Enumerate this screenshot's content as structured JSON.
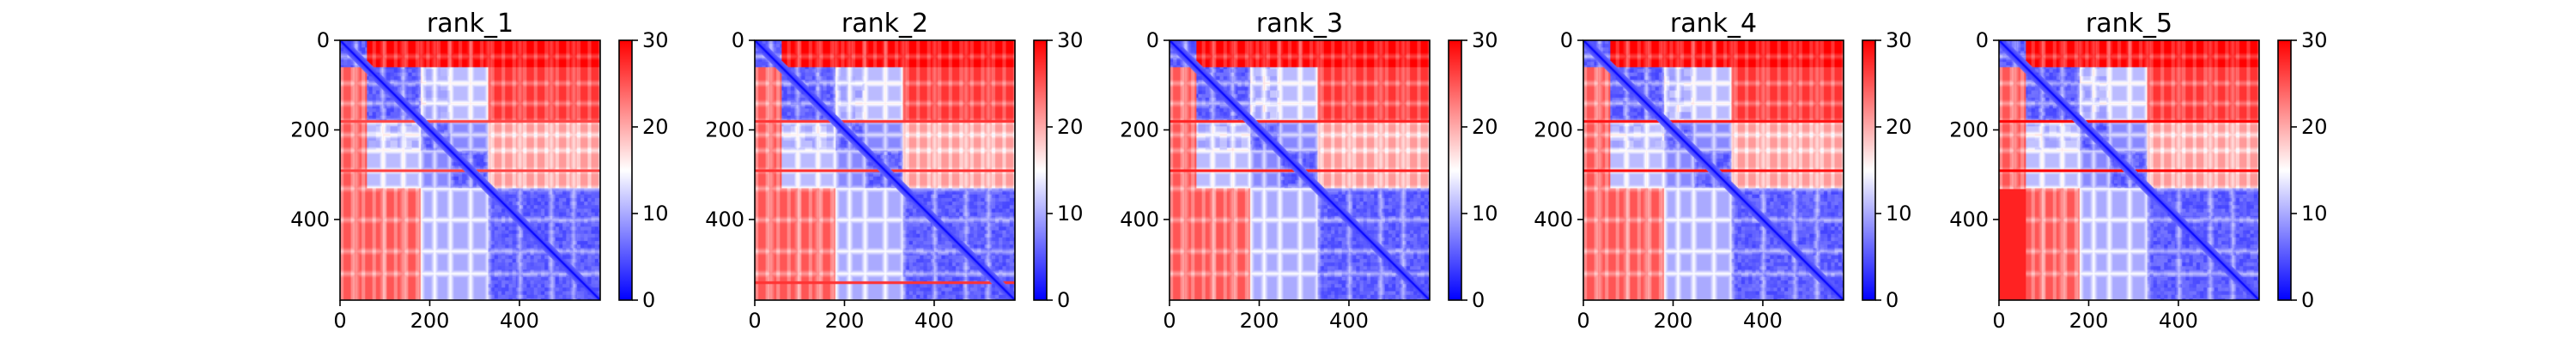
{
  "chart_data": [
    {
      "type": "heatmap",
      "title": "rank_1",
      "matrix_size": 580,
      "xticks": [
        0,
        200,
        400
      ],
      "yticks": [
        0,
        200,
        400
      ],
      "xlim": [
        0,
        580
      ],
      "ylim": [
        580,
        0
      ],
      "colorbar": {
        "ticks": [
          0,
          10,
          20,
          30
        ],
        "range": [
          0,
          30
        ]
      },
      "colormap": {
        "low": "#0000ff",
        "mid": "#ffffff",
        "high": "#ff0000"
      },
      "domains": [
        [
          0,
          60
        ],
        [
          60,
          180
        ],
        [
          180,
          245
        ],
        [
          245,
          330
        ],
        [
          330,
          580
        ]
      ],
      "hinges": [
        35,
        95,
        140,
        180,
        210,
        245,
        290,
        330,
        400,
        470,
        520
      ],
      "variant": 0
    },
    {
      "type": "heatmap",
      "title": "rank_2",
      "matrix_size": 580,
      "xticks": [
        0,
        200,
        400
      ],
      "yticks": [
        0,
        200,
        400
      ],
      "xlim": [
        0,
        580
      ],
      "ylim": [
        580,
        0
      ],
      "colorbar": {
        "ticks": [
          0,
          10,
          20,
          30
        ],
        "range": [
          0,
          30
        ]
      },
      "colormap": {
        "low": "#0000ff",
        "mid": "#ffffff",
        "high": "#ff0000"
      },
      "domains": [
        [
          0,
          60
        ],
        [
          60,
          180
        ],
        [
          180,
          245
        ],
        [
          245,
          330
        ],
        [
          330,
          580
        ]
      ],
      "hinges": [
        35,
        95,
        140,
        180,
        210,
        245,
        290,
        330,
        400,
        470,
        520
      ],
      "variant": 1
    },
    {
      "type": "heatmap",
      "title": "rank_3",
      "matrix_size": 580,
      "xticks": [
        0,
        200,
        400
      ],
      "yticks": [
        0,
        200,
        400
      ],
      "xlim": [
        0,
        580
      ],
      "ylim": [
        580,
        0
      ],
      "colorbar": {
        "ticks": [
          0,
          10,
          20,
          30
        ],
        "range": [
          0,
          30
        ]
      },
      "colormap": {
        "low": "#0000ff",
        "mid": "#ffffff",
        "high": "#ff0000"
      },
      "domains": [
        [
          0,
          60
        ],
        [
          60,
          180
        ],
        [
          180,
          245
        ],
        [
          245,
          330
        ],
        [
          330,
          580
        ]
      ],
      "hinges": [
        35,
        95,
        140,
        180,
        210,
        245,
        290,
        330,
        400,
        470,
        520
      ],
      "variant": 2
    },
    {
      "type": "heatmap",
      "title": "rank_4",
      "matrix_size": 580,
      "xticks": [
        0,
        200,
        400
      ],
      "yticks": [
        0,
        200,
        400
      ],
      "xlim": [
        0,
        580
      ],
      "ylim": [
        580,
        0
      ],
      "colorbar": {
        "ticks": [
          0,
          10,
          20,
          30
        ],
        "range": [
          0,
          30
        ]
      },
      "colormap": {
        "low": "#0000ff",
        "mid": "#ffffff",
        "high": "#ff0000"
      },
      "domains": [
        [
          0,
          60
        ],
        [
          60,
          180
        ],
        [
          180,
          245
        ],
        [
          245,
          330
        ],
        [
          330,
          580
        ]
      ],
      "hinges": [
        35,
        95,
        140,
        180,
        210,
        245,
        290,
        330,
        400,
        470,
        520
      ],
      "variant": 3
    },
    {
      "type": "heatmap",
      "title": "rank_5",
      "matrix_size": 580,
      "xticks": [
        0,
        200,
        400
      ],
      "yticks": [
        0,
        200,
        400
      ],
      "xlim": [
        0,
        580
      ],
      "ylim": [
        580,
        0
      ],
      "colorbar": {
        "ticks": [
          0,
          10,
          20,
          30
        ],
        "range": [
          0,
          30
        ]
      },
      "colormap": {
        "low": "#0000ff",
        "mid": "#ffffff",
        "high": "#ff0000"
      },
      "domains": [
        [
          0,
          60
        ],
        [
          60,
          180
        ],
        [
          180,
          245
        ],
        [
          245,
          330
        ],
        [
          330,
          580
        ]
      ],
      "hinges": [
        35,
        95,
        140,
        180,
        210,
        245,
        290,
        330,
        400,
        470,
        520
      ],
      "variant": 4
    }
  ]
}
